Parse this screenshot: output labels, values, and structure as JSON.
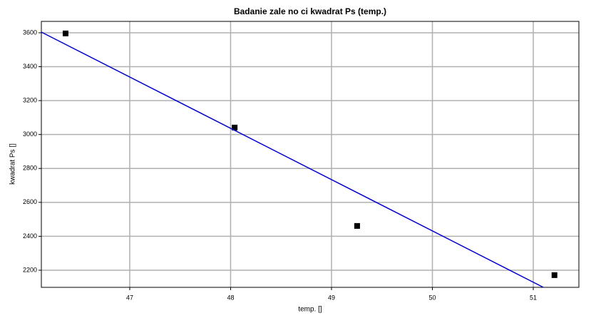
{
  "chart_data": {
    "type": "scatter",
    "title": "Badanie zale  no ci kwadrat Ps (temp.)",
    "x_label": "temp. []",
    "y_label": "kwadrat Ps []",
    "xlim": [
      46.124,
      51.452
    ],
    "ylim": [
      2099,
      3667
    ],
    "xticks": [
      47,
      48,
      49,
      50,
      51
    ],
    "yticks": [
      2200,
      2400,
      2600,
      2800,
      3000,
      3200,
      3400,
      3600
    ],
    "grid": true,
    "series": [
      {
        "kind": "points",
        "color": "#000000",
        "x": [
          46.364,
          48.04,
          49.254,
          51.21
        ],
        "values": [
          3596,
          3041,
          2461,
          2171
        ]
      },
      {
        "kind": "line",
        "color": "#0000cc",
        "x": [
          46.124,
          51.1
        ],
        "values": [
          3604,
          2099
        ]
      }
    ]
  }
}
